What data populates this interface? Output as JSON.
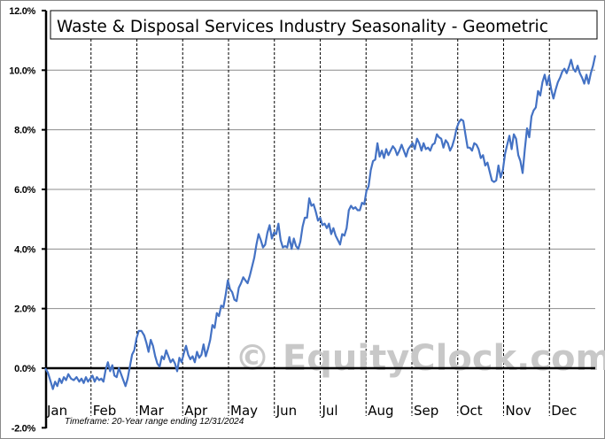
{
  "chart_data": {
    "type": "line",
    "title": "Waste & Disposal Services Industry Seasonality - Geometric",
    "subtitle": "Timeframe: 20-Year range ending 12/31/2024",
    "xlabel": "",
    "ylabel": "",
    "ylim": [
      -2.0,
      12.0
    ],
    "y_ticks": [
      "12.0%",
      "10.0%",
      "8.0%",
      "6.0%",
      "4.0%",
      "2.0%",
      "0.0%",
      "-2.0%"
    ],
    "y_tick_values": [
      12,
      10,
      8,
      6,
      4,
      2,
      0,
      -2
    ],
    "categories": [
      "Jan",
      "Feb",
      "Mar",
      "Apr",
      "May",
      "Jun",
      "Jul",
      "Aug",
      "Sep",
      "Oct",
      "Nov",
      "Dec"
    ],
    "grid": {
      "horizontal": true,
      "vertical_month_dividers": "dashed"
    },
    "legend": null,
    "watermark": "© EquityClock.com",
    "line_color": "#4472c4",
    "series": [
      {
        "name": "Waste & Disposal Services Industry Seasonality",
        "points": [
          [
            0.0,
            0.0
          ],
          [
            0.005,
            -0.15
          ],
          [
            0.01,
            -0.45
          ],
          [
            0.014,
            -0.7
          ],
          [
            0.018,
            -0.45
          ],
          [
            0.022,
            -0.6
          ],
          [
            0.026,
            -0.35
          ],
          [
            0.03,
            -0.5
          ],
          [
            0.034,
            -0.3
          ],
          [
            0.038,
            -0.4
          ],
          [
            0.042,
            -0.2
          ],
          [
            0.047,
            -0.35
          ],
          [
            0.052,
            -0.4
          ],
          [
            0.057,
            -0.3
          ],
          [
            0.062,
            -0.45
          ],
          [
            0.066,
            -0.35
          ],
          [
            0.07,
            -0.5
          ],
          [
            0.074,
            -0.3
          ],
          [
            0.078,
            -0.45
          ],
          [
            0.082,
            -0.35
          ],
          [
            0.086,
            -0.25
          ],
          [
            0.09,
            -0.45
          ],
          [
            0.094,
            -0.3
          ],
          [
            0.098,
            -0.4
          ],
          [
            0.102,
            -0.35
          ],
          [
            0.106,
            -0.45
          ],
          [
            0.11,
            -0.05
          ],
          [
            0.114,
            0.2
          ],
          [
            0.118,
            -0.1
          ],
          [
            0.122,
            0.1
          ],
          [
            0.126,
            -0.25
          ],
          [
            0.13,
            -0.3
          ],
          [
            0.134,
            0.0
          ],
          [
            0.138,
            -0.2
          ],
          [
            0.142,
            -0.4
          ],
          [
            0.146,
            -0.6
          ],
          [
            0.15,
            -0.35
          ],
          [
            0.154,
            0.05
          ],
          [
            0.158,
            0.45
          ],
          [
            0.162,
            0.6
          ],
          [
            0.166,
            1.0
          ],
          [
            0.17,
            1.25
          ],
          [
            0.175,
            1.25
          ],
          [
            0.18,
            1.1
          ],
          [
            0.184,
            0.85
          ],
          [
            0.188,
            0.55
          ],
          [
            0.192,
            0.95
          ],
          [
            0.196,
            0.75
          ],
          [
            0.2,
            0.4
          ],
          [
            0.204,
            0.15
          ],
          [
            0.208,
            0.05
          ],
          [
            0.212,
            0.4
          ],
          [
            0.216,
            0.3
          ],
          [
            0.22,
            0.6
          ],
          [
            0.224,
            0.4
          ],
          [
            0.228,
            0.2
          ],
          [
            0.232,
            0.3
          ],
          [
            0.236,
            0.15
          ],
          [
            0.24,
            -0.1
          ],
          [
            0.244,
            0.35
          ],
          [
            0.248,
            0.2
          ],
          [
            0.252,
            0.5
          ],
          [
            0.256,
            0.75
          ],
          [
            0.26,
            0.45
          ],
          [
            0.264,
            0.3
          ],
          [
            0.268,
            0.4
          ],
          [
            0.272,
            0.2
          ],
          [
            0.276,
            0.55
          ],
          [
            0.28,
            0.35
          ],
          [
            0.284,
            0.45
          ],
          [
            0.288,
            0.8
          ],
          [
            0.292,
            0.4
          ],
          [
            0.296,
            0.65
          ],
          [
            0.3,
            0.95
          ],
          [
            0.304,
            1.45
          ],
          [
            0.308,
            1.35
          ],
          [
            0.312,
            1.85
          ],
          [
            0.316,
            1.75
          ],
          [
            0.32,
            2.1
          ],
          [
            0.324,
            2.05
          ],
          [
            0.328,
            2.45
          ],
          [
            0.332,
            2.95
          ],
          [
            0.336,
            2.65
          ],
          [
            0.34,
            2.55
          ],
          [
            0.344,
            2.3
          ],
          [
            0.348,
            2.25
          ],
          [
            0.352,
            2.7
          ],
          [
            0.356,
            2.85
          ],
          [
            0.36,
            3.05
          ],
          [
            0.364,
            2.95
          ],
          [
            0.368,
            2.85
          ],
          [
            0.372,
            3.1
          ],
          [
            0.376,
            3.4
          ],
          [
            0.38,
            3.7
          ],
          [
            0.384,
            4.15
          ],
          [
            0.388,
            4.5
          ],
          [
            0.392,
            4.3
          ],
          [
            0.396,
            4.05
          ],
          [
            0.4,
            4.15
          ],
          [
            0.404,
            4.55
          ],
          [
            0.408,
            4.8
          ],
          [
            0.412,
            4.35
          ],
          [
            0.416,
            4.55
          ],
          [
            0.42,
            4.5
          ],
          [
            0.424,
            4.85
          ],
          [
            0.428,
            4.3
          ],
          [
            0.432,
            4.05
          ],
          [
            0.436,
            4.1
          ],
          [
            0.44,
            4.05
          ],
          [
            0.444,
            4.4
          ],
          [
            0.448,
            4.0
          ],
          [
            0.452,
            4.35
          ],
          [
            0.456,
            4.1
          ],
          [
            0.46,
            4.0
          ],
          [
            0.464,
            4.25
          ],
          [
            0.468,
            4.75
          ],
          [
            0.472,
            5.05
          ],
          [
            0.476,
            5.05
          ],
          [
            0.48,
            5.7
          ],
          [
            0.484,
            5.45
          ],
          [
            0.488,
            5.5
          ],
          [
            0.492,
            5.25
          ],
          [
            0.496,
            4.95
          ],
          [
            0.5,
            5.05
          ],
          [
            0.504,
            4.8
          ],
          [
            0.508,
            4.85
          ],
          [
            0.512,
            4.7
          ],
          [
            0.516,
            4.85
          ],
          [
            0.52,
            4.5
          ],
          [
            0.524,
            4.7
          ],
          [
            0.528,
            4.45
          ],
          [
            0.532,
            4.3
          ],
          [
            0.536,
            4.15
          ],
          [
            0.54,
            4.5
          ],
          [
            0.544,
            4.45
          ],
          [
            0.548,
            4.7
          ],
          [
            0.552,
            5.3
          ],
          [
            0.556,
            5.45
          ],
          [
            0.56,
            5.35
          ],
          [
            0.564,
            5.4
          ],
          [
            0.568,
            5.3
          ],
          [
            0.572,
            5.3
          ],
          [
            0.576,
            5.55
          ],
          [
            0.58,
            5.5
          ],
          [
            0.584,
            5.95
          ],
          [
            0.588,
            6.1
          ],
          [
            0.592,
            6.65
          ],
          [
            0.596,
            6.95
          ],
          [
            0.6,
            7.0
          ],
          [
            0.604,
            7.55
          ],
          [
            0.608,
            7.1
          ],
          [
            0.612,
            7.3
          ],
          [
            0.616,
            7.05
          ],
          [
            0.62,
            7.35
          ],
          [
            0.624,
            7.15
          ],
          [
            0.628,
            7.3
          ],
          [
            0.632,
            7.45
          ],
          [
            0.636,
            7.35
          ],
          [
            0.64,
            7.15
          ],
          [
            0.644,
            7.3
          ],
          [
            0.648,
            7.5
          ],
          [
            0.652,
            7.3
          ],
          [
            0.656,
            7.1
          ],
          [
            0.66,
            7.35
          ],
          [
            0.664,
            7.45
          ],
          [
            0.668,
            7.55
          ],
          [
            0.672,
            7.35
          ],
          [
            0.676,
            7.7
          ],
          [
            0.68,
            7.55
          ],
          [
            0.684,
            7.3
          ],
          [
            0.688,
            7.55
          ],
          [
            0.692,
            7.35
          ],
          [
            0.696,
            7.4
          ],
          [
            0.7,
            7.3
          ],
          [
            0.704,
            7.5
          ],
          [
            0.708,
            7.55
          ],
          [
            0.712,
            7.85
          ],
          [
            0.716,
            7.75
          ],
          [
            0.72,
            7.7
          ],
          [
            0.724,
            7.4
          ],
          [
            0.728,
            7.65
          ],
          [
            0.732,
            7.55
          ],
          [
            0.736,
            7.3
          ],
          [
            0.74,
            7.45
          ],
          [
            0.744,
            7.7
          ],
          [
            0.748,
            8.05
          ],
          [
            0.752,
            8.25
          ],
          [
            0.756,
            8.35
          ],
          [
            0.76,
            8.3
          ],
          [
            0.764,
            7.85
          ],
          [
            0.768,
            7.4
          ],
          [
            0.772,
            7.4
          ],
          [
            0.776,
            7.3
          ],
          [
            0.78,
            7.55
          ],
          [
            0.784,
            7.5
          ],
          [
            0.788,
            7.35
          ],
          [
            0.792,
            7.05
          ],
          [
            0.796,
            7.15
          ],
          [
            0.8,
            6.8
          ],
          [
            0.804,
            6.9
          ],
          [
            0.808,
            6.6
          ],
          [
            0.812,
            6.3
          ],
          [
            0.816,
            6.25
          ],
          [
            0.82,
            6.3
          ],
          [
            0.824,
            6.8
          ],
          [
            0.828,
            6.4
          ],
          [
            0.832,
            6.65
          ],
          [
            0.836,
            7.2
          ],
          [
            0.84,
            7.5
          ],
          [
            0.844,
            7.8
          ],
          [
            0.848,
            7.35
          ],
          [
            0.852,
            7.85
          ],
          [
            0.856,
            7.7
          ],
          [
            0.86,
            7.15
          ],
          [
            0.864,
            6.95
          ],
          [
            0.868,
            6.55
          ],
          [
            0.872,
            7.35
          ],
          [
            0.876,
            8.05
          ],
          [
            0.88,
            7.75
          ],
          [
            0.884,
            8.45
          ],
          [
            0.888,
            8.65
          ],
          [
            0.892,
            8.75
          ],
          [
            0.896,
            9.3
          ],
          [
            0.9,
            9.15
          ],
          [
            0.904,
            9.6
          ],
          [
            0.908,
            9.85
          ],
          [
            0.912,
            9.5
          ],
          [
            0.916,
            9.8
          ],
          [
            0.92,
            9.35
          ],
          [
            0.924,
            9.05
          ],
          [
            0.928,
            9.35
          ],
          [
            0.932,
            9.6
          ],
          [
            0.936,
            9.75
          ],
          [
            0.94,
            9.95
          ],
          [
            0.944,
            10.05
          ],
          [
            0.948,
            9.9
          ],
          [
            0.952,
            10.1
          ],
          [
            0.956,
            10.35
          ],
          [
            0.96,
            10.05
          ],
          [
            0.964,
            9.95
          ],
          [
            0.968,
            10.15
          ],
          [
            0.972,
            9.9
          ],
          [
            0.976,
            9.75
          ],
          [
            0.98,
            9.55
          ],
          [
            0.984,
            9.85
          ],
          [
            0.988,
            9.55
          ],
          [
            0.992,
            9.9
          ],
          [
            0.996,
            10.15
          ],
          [
            1.0,
            10.5
          ]
        ]
      }
    ]
  }
}
